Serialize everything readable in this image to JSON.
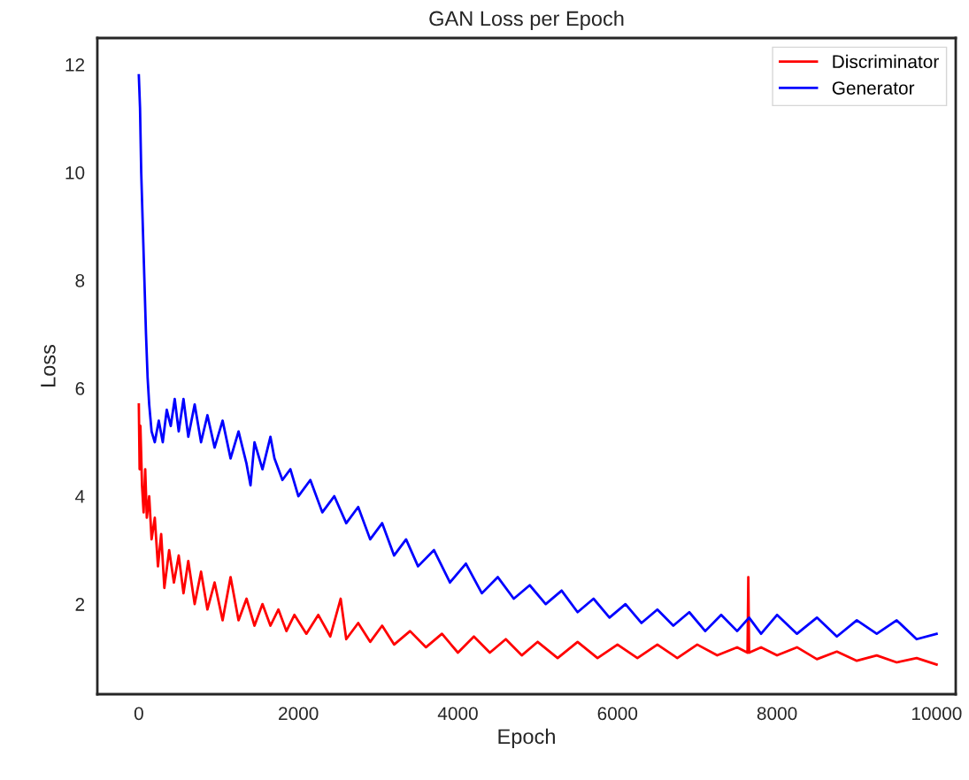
{
  "chart_data": {
    "type": "line",
    "title": "GAN Loss per Epoch",
    "xlabel": "Epoch",
    "ylabel": "Loss",
    "xlim": [
      -520,
      10240
    ],
    "ylim": [
      0.33,
      12.49
    ],
    "xticks": [
      0,
      2000,
      4000,
      6000,
      8000,
      10000
    ],
    "yticks": [
      2,
      4,
      6,
      8,
      10,
      12
    ],
    "grid": false,
    "legend": "top right",
    "line_style": "solid",
    "marker": "none",
    "series": [
      {
        "name": "Discriminator",
        "color": "#ff0000",
        "x": [
          0,
          10,
          20,
          40,
          60,
          80,
          100,
          130,
          160,
          200,
          240,
          280,
          320,
          380,
          440,
          500,
          560,
          620,
          700,
          780,
          860,
          950,
          1050,
          1150,
          1250,
          1350,
          1450,
          1550,
          1650,
          1750,
          1850,
          1950,
          2100,
          2250,
          2400,
          2530,
          2600,
          2750,
          2900,
          3050,
          3200,
          3400,
          3600,
          3800,
          4000,
          4200,
          4400,
          4600,
          4800,
          5000,
          5250,
          5500,
          5750,
          6000,
          6250,
          6500,
          6750,
          7000,
          7250,
          7500,
          7630,
          7640,
          7650,
          7800,
          8000,
          8250,
          8500,
          8750,
          9000,
          9250,
          9500,
          9750,
          10000
        ],
        "values": [
          5.7,
          4.5,
          5.3,
          4.2,
          3.7,
          4.5,
          3.6,
          4.0,
          3.2,
          3.6,
          2.7,
          3.3,
          2.3,
          3.0,
          2.4,
          2.9,
          2.2,
          2.8,
          2.0,
          2.6,
          1.9,
          2.4,
          1.7,
          2.5,
          1.7,
          2.1,
          1.6,
          2.0,
          1.6,
          1.9,
          1.5,
          1.8,
          1.45,
          1.8,
          1.4,
          2.1,
          1.35,
          1.65,
          1.3,
          1.6,
          1.25,
          1.5,
          1.2,
          1.45,
          1.1,
          1.4,
          1.1,
          1.35,
          1.05,
          1.3,
          1.0,
          1.3,
          1.0,
          1.25,
          1.0,
          1.25,
          1.0,
          1.25,
          1.05,
          1.2,
          1.1,
          2.5,
          1.1,
          1.2,
          1.05,
          1.2,
          0.98,
          1.12,
          0.95,
          1.05,
          0.92,
          1.0,
          0.88
        ]
      },
      {
        "name": "Generator",
        "color": "#0000ff",
        "x": [
          0,
          15,
          30,
          50,
          70,
          90,
          110,
          130,
          160,
          200,
          250,
          300,
          350,
          400,
          450,
          500,
          560,
          620,
          700,
          780,
          860,
          950,
          1050,
          1150,
          1250,
          1350,
          1400,
          1450,
          1550,
          1650,
          1700,
          1800,
          1900,
          2000,
          2150,
          2300,
          2450,
          2600,
          2750,
          2900,
          3050,
          3200,
          3350,
          3500,
          3700,
          3900,
          4100,
          4300,
          4500,
          4700,
          4900,
          5100,
          5300,
          5500,
          5700,
          5900,
          6100,
          6300,
          6500,
          6700,
          6900,
          7100,
          7300,
          7500,
          7650,
          7800,
          8000,
          8250,
          8500,
          8750,
          9000,
          9250,
          9500,
          9750,
          10000
        ],
        "values": [
          11.8,
          11.2,
          10.0,
          9.0,
          8.0,
          7.0,
          6.2,
          5.7,
          5.2,
          5.0,
          5.4,
          5.0,
          5.6,
          5.3,
          5.8,
          5.2,
          5.8,
          5.1,
          5.7,
          5.0,
          5.5,
          4.9,
          5.4,
          4.7,
          5.2,
          4.6,
          4.2,
          5.0,
          4.5,
          5.1,
          4.7,
          4.3,
          4.5,
          4.0,
          4.3,
          3.7,
          4.0,
          3.5,
          3.8,
          3.2,
          3.5,
          2.9,
          3.2,
          2.7,
          3.0,
          2.4,
          2.75,
          2.2,
          2.5,
          2.1,
          2.35,
          2.0,
          2.25,
          1.85,
          2.1,
          1.75,
          2.0,
          1.65,
          1.9,
          1.6,
          1.85,
          1.5,
          1.8,
          1.5,
          1.75,
          1.45,
          1.8,
          1.45,
          1.75,
          1.4,
          1.7,
          1.45,
          1.7,
          1.35,
          1.45
        ]
      }
    ]
  }
}
